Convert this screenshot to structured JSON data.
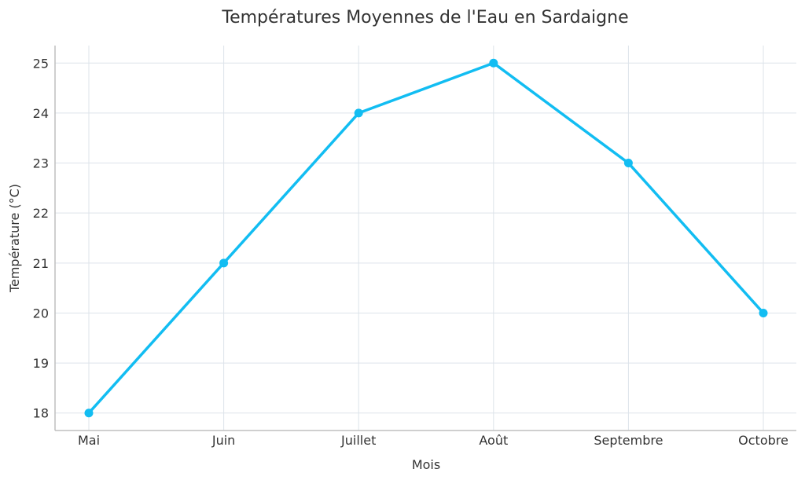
{
  "chart_data": {
    "type": "line",
    "title": "Températures Moyennes de l'Eau en Sardaigne",
    "xlabel": "Mois",
    "ylabel": "Température (°C)",
    "categories": [
      "Mai",
      "Juin",
      "Juillet",
      "Août",
      "Septembre",
      "Octobre"
    ],
    "series": [
      {
        "values": [
          18,
          21,
          24,
          25,
          23,
          20
        ],
        "color": "#12bdf2"
      }
    ],
    "ylim": [
      17.65,
      25.35
    ],
    "yticks": [
      18,
      19,
      20,
      21,
      22,
      23,
      24,
      25
    ],
    "grid": true,
    "legend": "none"
  }
}
